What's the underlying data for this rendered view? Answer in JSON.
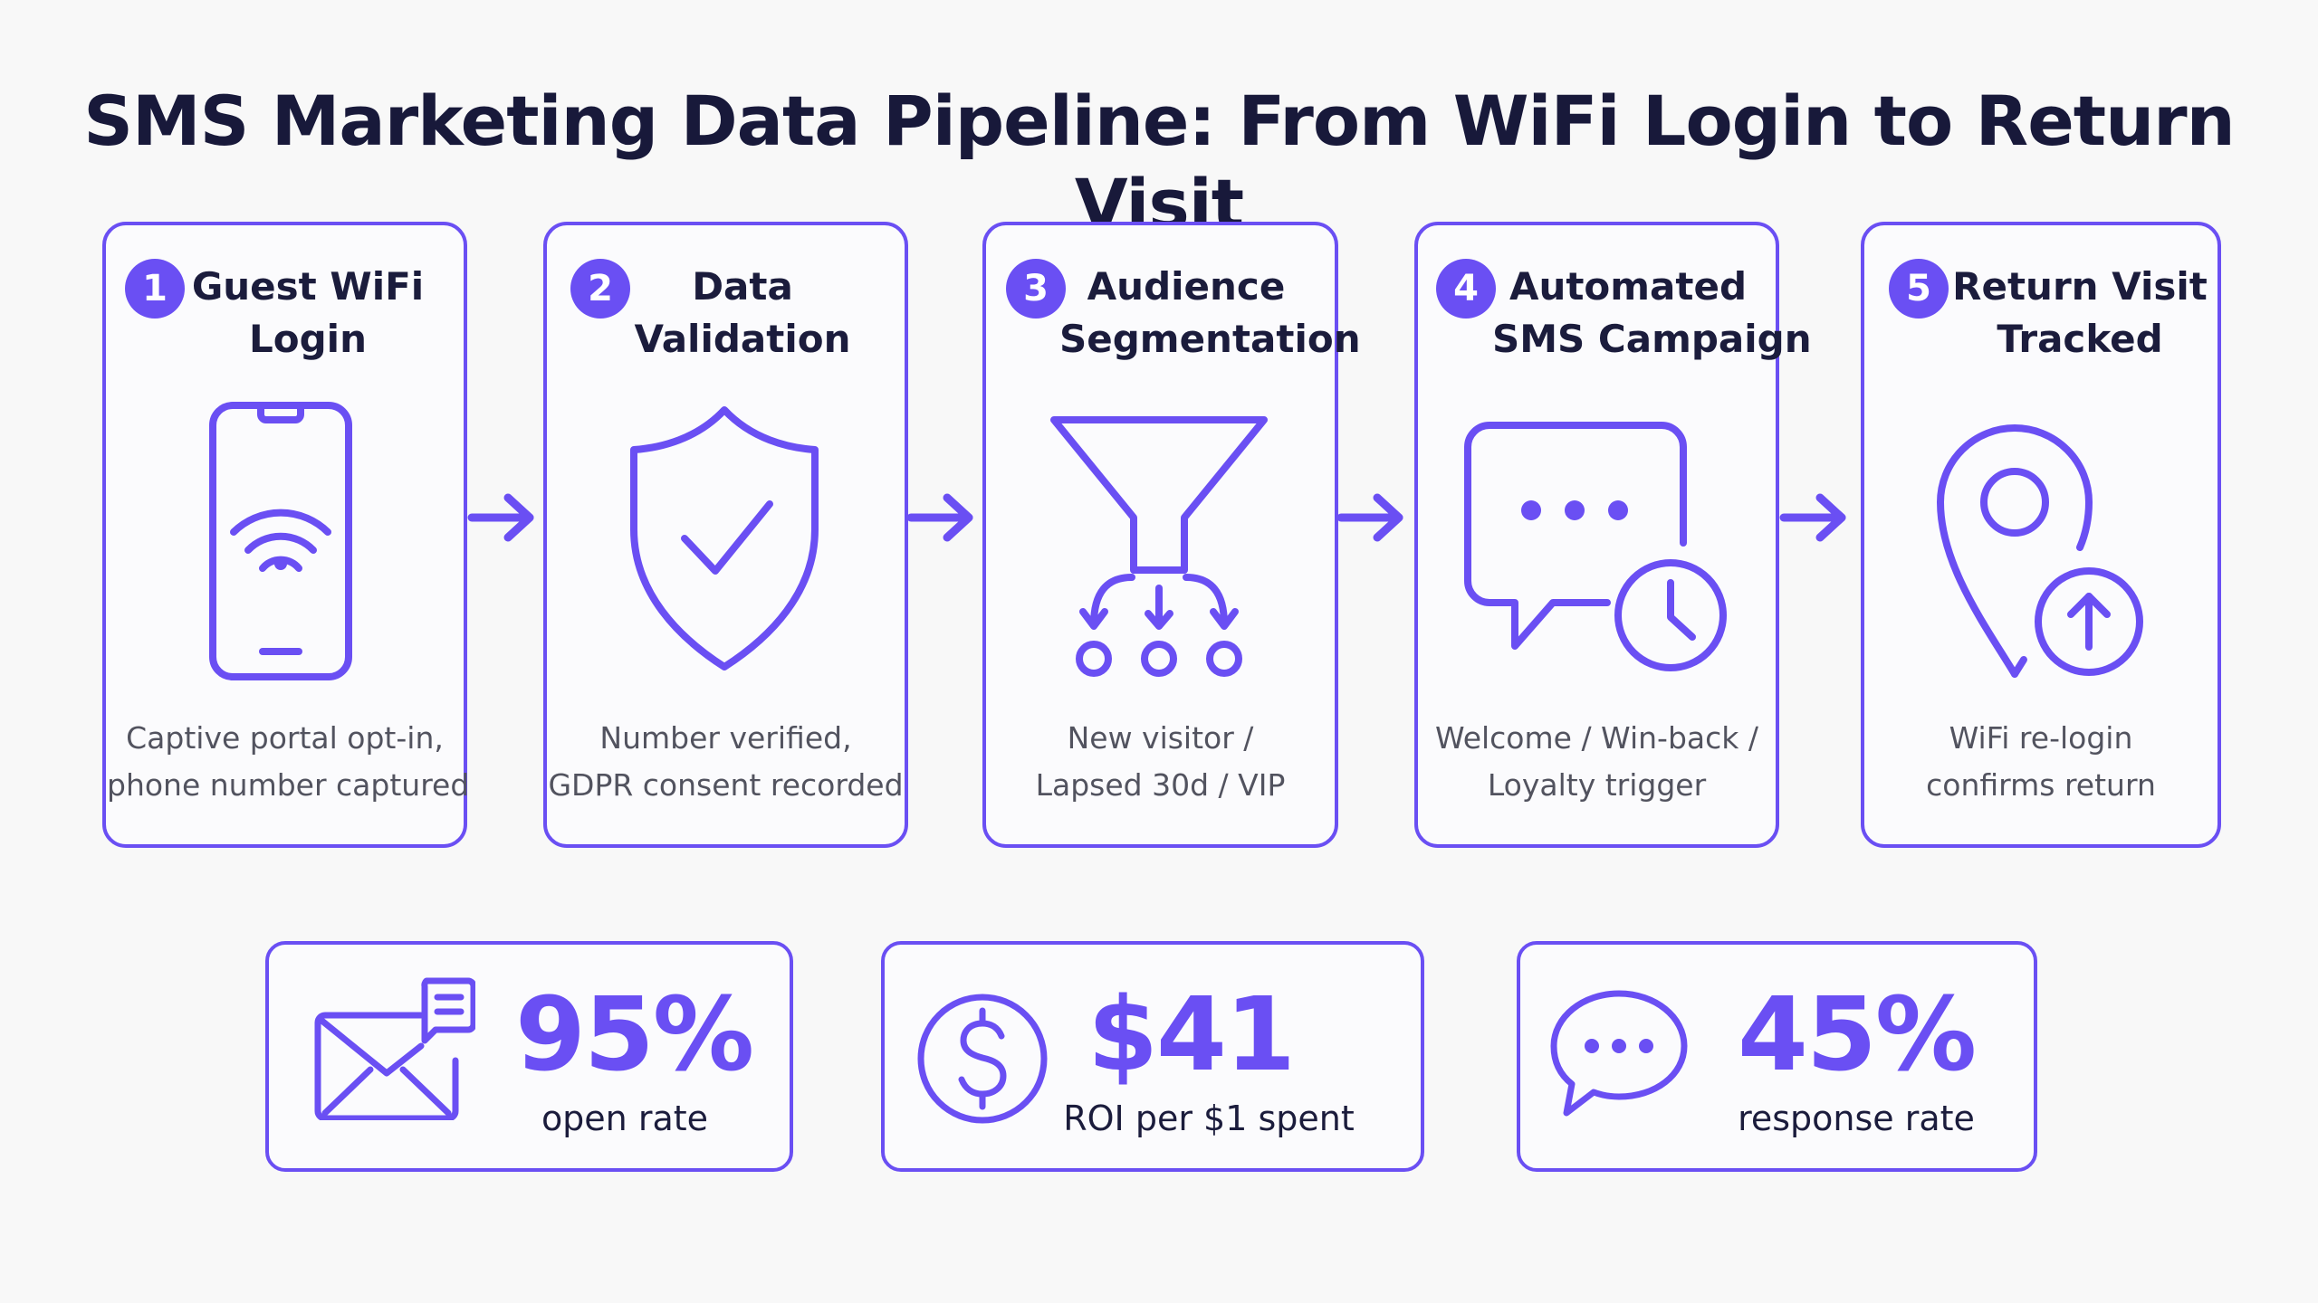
{
  "title": "SMS Marketing Data Pipeline: From WiFi Login to Return Visit",
  "accent_color": "#6a4ff3",
  "steps": [
    {
      "number": "1",
      "title_line1": "Guest WiFi",
      "title_line2": "Login",
      "desc_line1": "Captive portal opt-in,",
      "desc_line2": "phone number captured",
      "icon": "smartphone-wifi-icon"
    },
    {
      "number": "2",
      "title_line1": "Data",
      "title_line2": "Validation",
      "desc_line1": "Number verified,",
      "desc_line2": "GDPR consent recorded",
      "icon": "shield-check-icon"
    },
    {
      "number": "3",
      "title_line1": "Audience",
      "title_line2": "Segmentation",
      "desc_line1": "New visitor /",
      "desc_line2": "Lapsed 30d / VIP",
      "icon": "funnel-icon"
    },
    {
      "number": "4",
      "title_line1": "Automated",
      "title_line2": "SMS Campaign",
      "desc_line1": "Welcome / Win-back /",
      "desc_line2": "Loyalty trigger",
      "icon": "chat-clock-icon"
    },
    {
      "number": "5",
      "title_line1": "Return Visit",
      "title_line2": "Tracked",
      "desc_line1": "WiFi re-login",
      "desc_line2": "confirms return",
      "icon": "location-pin-up-icon"
    }
  ],
  "stats": [
    {
      "value": "95%",
      "label": "open rate",
      "icon": "envelope-message-icon"
    },
    {
      "value": "$41",
      "label": "ROI per $1 spent",
      "icon": "dollar-circle-icon"
    },
    {
      "value": "45%",
      "label": "response rate",
      "icon": "chat-bubble-icon"
    }
  ]
}
